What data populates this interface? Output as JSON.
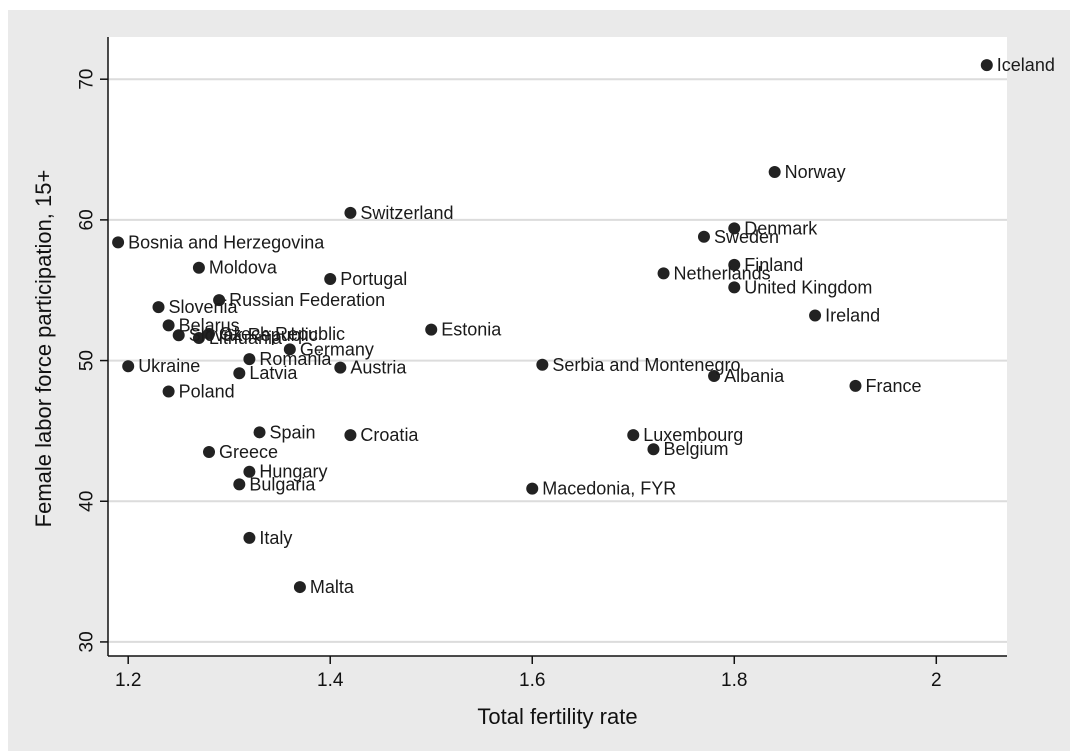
{
  "chart_data": {
    "type": "scatter",
    "title": "",
    "xlabel": "Total fertility rate",
    "ylabel": "Female labor force participation, 15+",
    "xlim": [
      1.18,
      2.07
    ],
    "ylim": [
      29,
      73
    ],
    "x_ticks": [
      {
        "value": 1.2,
        "label": "1.2"
      },
      {
        "value": 1.4,
        "label": "1.4"
      },
      {
        "value": 1.6,
        "label": "1.6"
      },
      {
        "value": 1.8,
        "label": "1.8"
      },
      {
        "value": 2.0,
        "label": "2"
      }
    ],
    "y_ticks": [
      {
        "value": 30,
        "label": "30"
      },
      {
        "value": 40,
        "label": "40"
      },
      {
        "value": 50,
        "label": "50"
      },
      {
        "value": 60,
        "label": "60"
      },
      {
        "value": 70,
        "label": "70"
      }
    ],
    "grid": "horizontal",
    "marker_color": "#222222",
    "gridline_color": "#dcdcdc",
    "points": [
      {
        "label": "Iceland",
        "x": 2.05,
        "y": 71.0
      },
      {
        "label": "Norway",
        "x": 1.84,
        "y": 63.4
      },
      {
        "label": "Switzerland",
        "x": 1.42,
        "y": 60.5
      },
      {
        "label": "Denmark",
        "x": 1.8,
        "y": 59.4
      },
      {
        "label": "Sweden",
        "x": 1.77,
        "y": 58.8
      },
      {
        "label": "Bosnia and Herzegovina",
        "x": 1.19,
        "y": 58.4
      },
      {
        "label": "Finland",
        "x": 1.8,
        "y": 56.8
      },
      {
        "label": "Moldova",
        "x": 1.27,
        "y": 56.6
      },
      {
        "label": "Netherlands",
        "x": 1.73,
        "y": 56.2
      },
      {
        "label": "Portugal",
        "x": 1.4,
        "y": 55.8
      },
      {
        "label": "United Kingdom",
        "x": 1.8,
        "y": 55.2
      },
      {
        "label": "Russian Federation",
        "x": 1.29,
        "y": 54.3
      },
      {
        "label": "Slovenia",
        "x": 1.23,
        "y": 53.8
      },
      {
        "label": "Ireland",
        "x": 1.88,
        "y": 53.2
      },
      {
        "label": "Belarus",
        "x": 1.24,
        "y": 52.5
      },
      {
        "label": "Estonia",
        "x": 1.5,
        "y": 52.2
      },
      {
        "label": "Slovak Republic",
        "x": 1.25,
        "y": 51.8
      },
      {
        "label": "Czech Republic",
        "x": 1.28,
        "y": 51.9
      },
      {
        "label": "Lithuania",
        "x": 1.27,
        "y": 51.6
      },
      {
        "label": "Germany",
        "x": 1.36,
        "y": 50.8
      },
      {
        "label": "Romania",
        "x": 1.32,
        "y": 50.1
      },
      {
        "label": "Serbia and Montenegro",
        "x": 1.61,
        "y": 49.7
      },
      {
        "label": "Ukraine",
        "x": 1.2,
        "y": 49.6
      },
      {
        "label": "Austria",
        "x": 1.41,
        "y": 49.5
      },
      {
        "label": "Latvia",
        "x": 1.31,
        "y": 49.1
      },
      {
        "label": "Albania",
        "x": 1.78,
        "y": 48.9
      },
      {
        "label": "France",
        "x": 1.92,
        "y": 48.2
      },
      {
        "label": "Poland",
        "x": 1.24,
        "y": 47.8
      },
      {
        "label": "Spain",
        "x": 1.33,
        "y": 44.9
      },
      {
        "label": "Luxembourg",
        "x": 1.7,
        "y": 44.7
      },
      {
        "label": "Croatia",
        "x": 1.42,
        "y": 44.7
      },
      {
        "label": "Belgium",
        "x": 1.72,
        "y": 43.7
      },
      {
        "label": "Greece",
        "x": 1.28,
        "y": 43.5
      },
      {
        "label": "Hungary",
        "x": 1.32,
        "y": 42.1
      },
      {
        "label": "Bulgaria",
        "x": 1.31,
        "y": 41.2
      },
      {
        "label": "Macedonia, FYR",
        "x": 1.6,
        "y": 40.9
      },
      {
        "label": "Italy",
        "x": 1.32,
        "y": 37.4
      },
      {
        "label": "Malta",
        "x": 1.37,
        "y": 33.9
      }
    ]
  }
}
